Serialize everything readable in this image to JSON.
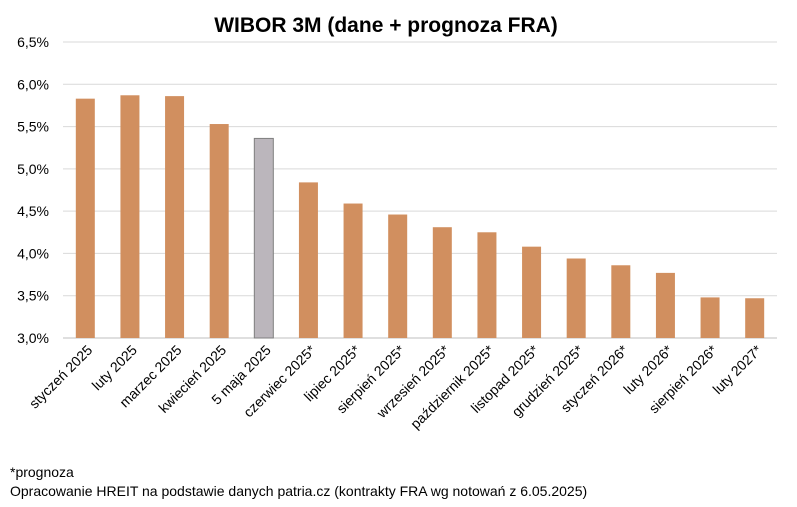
{
  "chart_data": {
    "type": "bar",
    "title": "WIBOR 3M (dane + prognoza FRA)",
    "categories": [
      "styczeń 2025",
      "luty 2025",
      "marzec 2025",
      "kwiecień 2025",
      "5 maja 2025",
      "czerwiec 2025*",
      "lipiec 2025*",
      "sierpień 2025*",
      "wrzesień 2025*",
      "październik 2025*",
      "listopad 2025*",
      "grudzień 2025*",
      "styczeń 2026*",
      "luty 2026*",
      "sierpień 2026*",
      "luty 2027*"
    ],
    "values": [
      5.83,
      5.87,
      5.86,
      5.53,
      5.36,
      4.84,
      4.59,
      4.46,
      4.31,
      4.25,
      4.08,
      3.94,
      3.86,
      3.77,
      3.48,
      3.47
    ],
    "highlight_index": 4,
    "ylim": [
      3.0,
      6.5
    ],
    "yticks": [
      "3,0%",
      "3,5%",
      "4,0%",
      "4,5%",
      "5,0%",
      "5,5%",
      "6,0%",
      "6,5%"
    ],
    "xlabel": "",
    "ylabel": "",
    "grid": true,
    "legend": "none",
    "colors": {
      "bar": "#D18F5F",
      "highlight": "#BBB6BC",
      "highlight_border": "#7F7F7F",
      "grid": "#D9D9D9",
      "axis": "#BFBFBF"
    }
  },
  "notes": {
    "footnote": "*prognoza",
    "source": "Opracowanie HREIT na podstawie danych patria.cz (kontrakty FRA wg notowań z 6.05.2025)"
  }
}
